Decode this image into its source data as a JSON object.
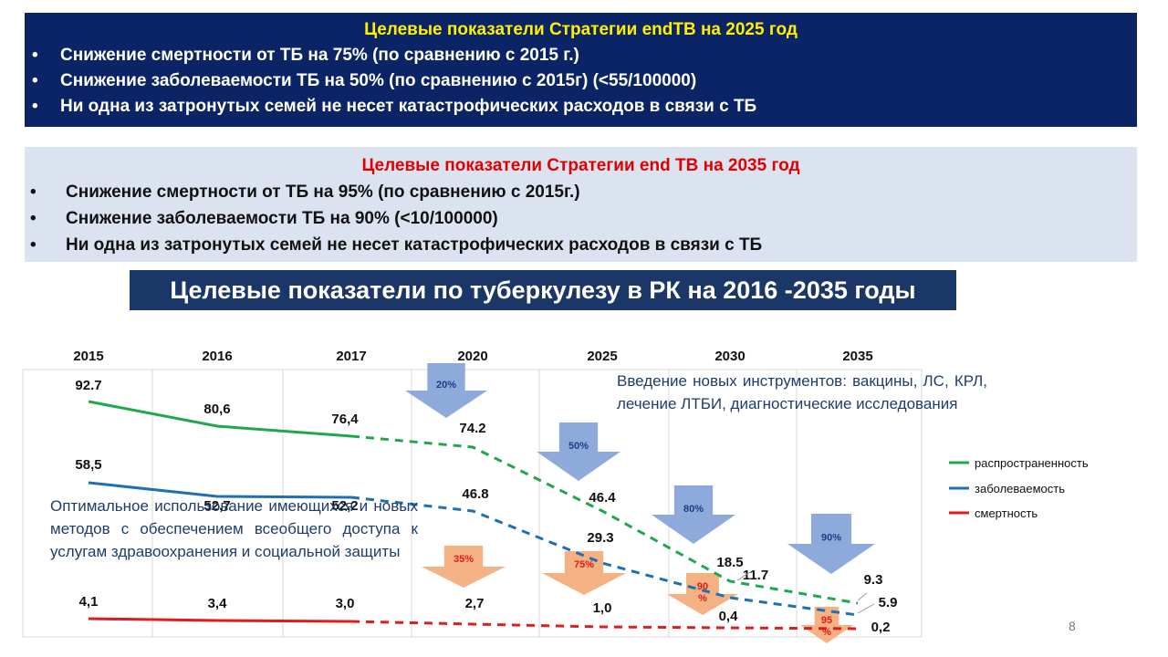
{
  "box_2025": {
    "title": "Целевые показатели Стратегии endTB на 2025 год",
    "bullets": [
      "Снижение смертности от ТБ на 75% (по сравнению с 2015 г.)",
      "Снижение заболеваемости ТБ на 50% (по сравнению с 2015г) (<55/100000)",
      "Ни одна из затронутых семей не несет катастрофических расходов в связи с ТБ"
    ]
  },
  "box_2035": {
    "title": "Целевые показатели Стратегии end ТВ на 2035 год",
    "bullets": [
      "Снижение смертности от ТБ на 95% (по сравнению с 2015г.)",
      "Снижение заболеваемости ТБ на 90% (<10/100000)",
      "Ни одна из затронутых семей не несет катастрофических расходов в связи с ТБ"
    ]
  },
  "chart_title": "Целевые показатели по туберкулезу в РК на 2016 -2035 годы",
  "notes": {
    "tools": "Введение новых инструментов: вакцины, ЛС, КРЛ, лечение ЛТБИ, диагностические исследования",
    "optimal": "Оптимальное использование имеющихся и новых методов с обеспечением всеобщего доступа к услугам здравоохранения и социальной защиты"
  },
  "page_number": "8",
  "colors": {
    "prevalence": "#1fa84a",
    "incidence": "#1f6fb2",
    "mortality": "#e01b1b",
    "blue_arrow": "#8eaadb",
    "orange_arrow": "#f4b183"
  },
  "chart_data": {
    "type": "line",
    "categories": [
      "2015",
      "2016",
      "2017",
      "2020",
      "2025",
      "2030",
      "2035"
    ],
    "actual_through": "2017",
    "series": [
      {
        "name": "распространенность",
        "values": [
          92.7,
          80.6,
          76.4,
          74.2,
          46.4,
          18.5,
          9.3
        ],
        "labels": [
          "92.7",
          "80,6",
          "76,4",
          "74.2",
          "46.4",
          "18.5",
          "9.3"
        ]
      },
      {
        "name": "заболеваемость",
        "values": [
          58.5,
          52.7,
          52.2,
          46.8,
          29.3,
          11.7,
          5.9
        ],
        "labels": [
          "58,5",
          "52,7",
          "52,2",
          "46.8",
          "29.3",
          "11.7",
          "5.9"
        ]
      },
      {
        "name": "смертность",
        "values": [
          4.1,
          3.4,
          3.0,
          2.7,
          1.0,
          0.4,
          0.2
        ],
        "labels": [
          "4,1",
          "3,4",
          "3,0",
          "2,7",
          "1,0",
          "0,4",
          "0,2"
        ]
      }
    ],
    "reduction_arrows_blue": [
      {
        "year": "2020",
        "label": "20%"
      },
      {
        "year": "2025",
        "label": "50%"
      },
      {
        "year": "2030",
        "label": "80%"
      },
      {
        "year": "2035",
        "label": "90%"
      }
    ],
    "reduction_arrows_orange": [
      {
        "year": "2020",
        "label": "35%"
      },
      {
        "year": "2025",
        "label": "75%"
      },
      {
        "year": "2030",
        "label": "90 %"
      },
      {
        "year": "2035",
        "label": "95 %"
      }
    ],
    "legend_position": "right"
  }
}
